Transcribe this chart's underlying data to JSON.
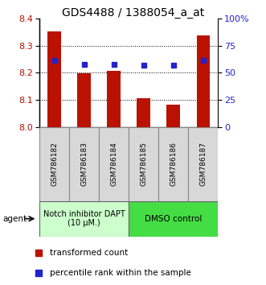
{
  "title": "GDS4488 / 1388054_a_at",
  "samples": [
    "GSM786182",
    "GSM786183",
    "GSM786184",
    "GSM786185",
    "GSM786186",
    "GSM786187"
  ],
  "bar_values": [
    8.352,
    8.197,
    8.208,
    8.107,
    8.082,
    8.337
  ],
  "bar_base": 8.0,
  "percentile_values": [
    61,
    58,
    58,
    57,
    57,
    61
  ],
  "ylim_left": [
    8.0,
    8.4
  ],
  "ylim_right": [
    0,
    100
  ],
  "yticks_left": [
    8.0,
    8.1,
    8.2,
    8.3,
    8.4
  ],
  "yticks_right": [
    0,
    25,
    50,
    75,
    100
  ],
  "ytick_labels_right": [
    "0",
    "25",
    "50",
    "75",
    "100%"
  ],
  "bar_color": "#bb1100",
  "blue_color": "#2222cc",
  "group1_label": "Notch inhibitor DAPT\n(10 μM.)",
  "group2_label": "DMSO control",
  "group1_color": "#ccffcc",
  "group2_color": "#44dd44",
  "group1_indices": [
    0,
    1,
    2
  ],
  "group2_indices": [
    3,
    4,
    5
  ],
  "agent_label": "agent",
  "legend_bar_label": "transformed count",
  "legend_dot_label": "percentile rank within the sample",
  "bar_width": 0.45,
  "title_fontsize": 10,
  "gridlines": [
    8.1,
    8.2,
    8.3
  ]
}
